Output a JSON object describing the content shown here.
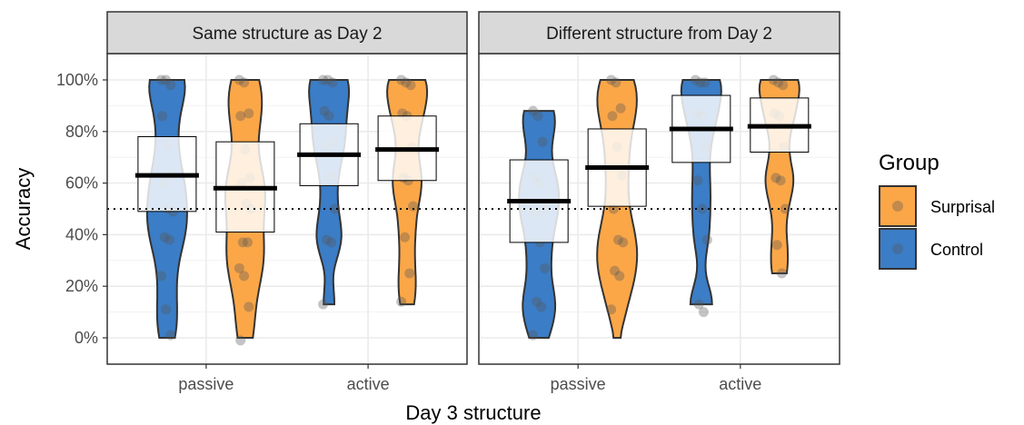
{
  "chart_data": {
    "type": "violin",
    "xlabel": "Day 3 structure",
    "ylabel": "Accuracy",
    "ylim": [
      0,
      100
    ],
    "y_ticks": [
      "0%",
      "20%",
      "40%",
      "60%",
      "80%",
      "100%"
    ],
    "y_tick_values": [
      0,
      20,
      40,
      60,
      80,
      100
    ],
    "reference_line": 50,
    "categories": [
      "passive",
      "active"
    ],
    "legend": {
      "title": "Group",
      "entries": [
        {
          "name": "Surprisal",
          "color": "#fba748"
        },
        {
          "name": "Control",
          "color": "#3b7dc6"
        }
      ]
    },
    "panels": [
      {
        "title": "Same structure as Day 2",
        "groups": [
          {
            "category": "passive",
            "series": "Control",
            "mean": 63,
            "ci": [
              49,
              78
            ],
            "range": [
              0,
              100
            ],
            "points": [
              100,
              100,
              98,
              86,
              75,
              63,
              60,
              50,
              49,
              39,
              38,
              24,
              11,
              1
            ]
          },
          {
            "category": "passive",
            "series": "Surprisal",
            "mean": 58,
            "ci": [
              41,
              76
            ],
            "range": [
              0,
              100
            ],
            "points": [
              100,
              99,
              87,
              86,
              73,
              62,
              60,
              52,
              50,
              37,
              37,
              27,
              24,
              12,
              -1
            ]
          },
          {
            "category": "active",
            "series": "Control",
            "mean": 71,
            "ci": [
              59,
              83
            ],
            "range": [
              13,
              100
            ],
            "points": [
              100,
              100,
              99,
              88,
              86,
              76,
              74,
              63,
              50,
              38,
              37,
              13
            ]
          },
          {
            "category": "active",
            "series": "Surprisal",
            "mean": 73,
            "ci": [
              61,
              86
            ],
            "range": [
              13,
              100
            ],
            "points": [
              100,
              99,
              98,
              87,
              86,
              74,
              62,
              61,
              51,
              39,
              25,
              14
            ]
          }
        ]
      },
      {
        "title": "Different structure from Day 2",
        "groups": [
          {
            "category": "passive",
            "series": "Control",
            "mean": 53,
            "ci": [
              37,
              69
            ],
            "range": [
              0,
              88
            ],
            "points": [
              88,
              86,
              76,
              62,
              60,
              50,
              48,
              37,
              27,
              14,
              12,
              1
            ]
          },
          {
            "category": "passive",
            "series": "Surprisal",
            "mean": 66,
            "ci": [
              51,
              81
            ],
            "range": [
              0,
              100
            ],
            "points": [
              100,
              99,
              89,
              86,
              74,
              63,
              50,
              38,
              37,
              26,
              24,
              11
            ]
          },
          {
            "category": "active",
            "series": "Control",
            "mean": 81,
            "ci": [
              68,
              94
            ],
            "range": [
              13,
              100
            ],
            "points": [
              100,
              99,
              99,
              87,
              86,
              74,
              61,
              50,
              38,
              13,
              10
            ]
          },
          {
            "category": "active",
            "series": "Surprisal",
            "mean": 82,
            "ci": [
              72,
              93
            ],
            "range": [
              25,
              100
            ],
            "points": [
              100,
              99,
              98,
              87,
              86,
              74,
              62,
              61,
              50,
              36,
              25
            ]
          }
        ]
      }
    ]
  }
}
